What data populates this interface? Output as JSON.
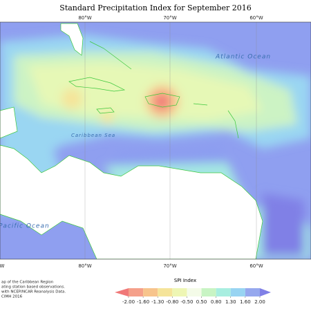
{
  "title": "Standard Precipitation Index for September 2016",
  "longitudes": {
    "top": [
      "80°W",
      "70°W",
      "60°W"
    ],
    "bottom": [
      "W",
      "80°W",
      "70°W",
      "60°W"
    ]
  },
  "ocean_labels": {
    "atlantic": "Atlantic Ocean",
    "caribbean": "Caribbean Sea",
    "pacific": "Pacific Ocean"
  },
  "credits": [
    "ap of the Caribbean Region",
    "ating station based observations.",
    "with NCEP/NCAR Reanalysis Data.",
    "CIMH 2016"
  ],
  "legend": {
    "title": "SPI Index",
    "ticks": [
      {
        "value": -2,
        "label": "-2.00"
      },
      {
        "value": -1.6,
        "label": "-1.60"
      },
      {
        "value": -1.3,
        "label": "-1.30"
      },
      {
        "value": -0.8,
        "label": "-0.80"
      },
      {
        "value": -0.5,
        "label": "-0.50"
      },
      {
        "value": 0.5,
        "label": "0.50"
      },
      {
        "value": 0.8,
        "label": "0.80"
      },
      {
        "value": 1.3,
        "label": "1.30"
      },
      {
        "value": 1.6,
        "label": "1.60"
      },
      {
        "value": 2,
        "label": "2.00"
      }
    ],
    "colors": [
      "#f07878",
      "#f5a08a",
      "#f7c48c",
      "#f5e49a",
      "#eef6b4",
      "#f4fbe8",
      "#c8f4c4",
      "#a8eee0",
      "#98d4f2",
      "#96a8ee",
      "#8080e6"
    ]
  }
}
